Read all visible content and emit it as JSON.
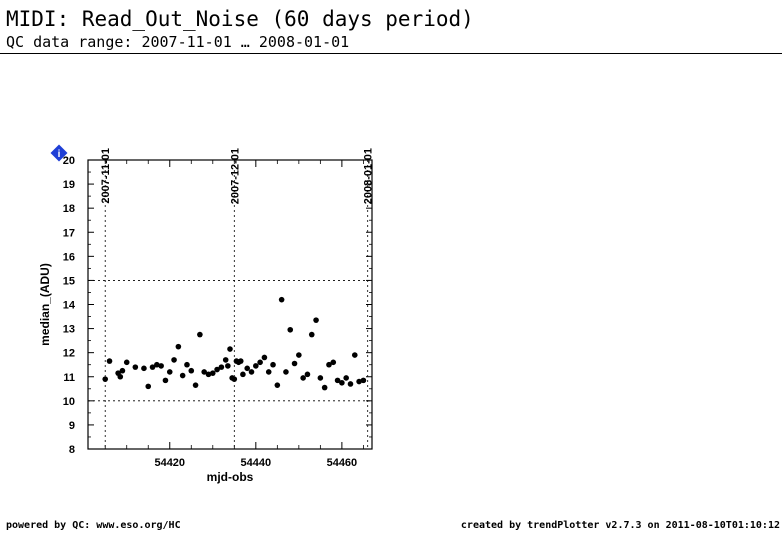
{
  "header": {
    "title": "MIDI: Read_Out_Noise (60 days period)",
    "subtitle": "QC data range: 2007-11-01 … 2008-01-01"
  },
  "footer": {
    "left": "powered by QC: www.eso.org/HC",
    "right": "created by trendPlotter v2.7.3 on 2011-08-10T01:10:12"
  },
  "marker": {
    "label": "i",
    "color": "#1f3fd6"
  },
  "chart_data": {
    "type": "scatter",
    "xlabel": "mjd-obs",
    "ylabel": "median_(ADU)",
    "xlim": [
      54401,
      54467
    ],
    "ylim": [
      8,
      20
    ],
    "xticks": [
      54420,
      54440,
      54460
    ],
    "yticks": [
      8,
      9,
      10,
      11,
      12,
      13,
      14,
      15,
      16,
      17,
      18,
      19,
      20
    ],
    "date_markers": [
      {
        "mjd": 54405,
        "label": "2007-11-01"
      },
      {
        "mjd": 54435,
        "label": "2007-12-01"
      },
      {
        "mjd": 54466,
        "label": "2008-01-01"
      }
    ],
    "reference_lines": [
      10,
      15
    ],
    "x": [
      54405,
      54406,
      54408,
      54408.5,
      54409,
      54410,
      54412,
      54414,
      54415,
      54416,
      54417,
      54418,
      54419,
      54420,
      54421,
      54422,
      54423,
      54424,
      54425,
      54426,
      54427,
      54428,
      54429,
      54430,
      54431,
      54432,
      54433,
      54433.5,
      54434,
      54434.5,
      54435,
      54435.5,
      54436,
      54436.5,
      54437,
      54438,
      54439,
      54440,
      54441,
      54442,
      54443,
      54444,
      54445,
      54446,
      54447,
      54448,
      54449,
      54450,
      54451,
      54452,
      54453,
      54454,
      54455,
      54456,
      54457,
      54458,
      54459,
      54460,
      54461,
      54462,
      54463,
      54464,
      54465
    ],
    "y": [
      10.9,
      11.65,
      11.15,
      11.0,
      11.25,
      11.6,
      11.4,
      11.35,
      10.6,
      11.4,
      11.5,
      11.45,
      10.85,
      11.2,
      11.7,
      12.25,
      11.05,
      11.5,
      11.25,
      10.65,
      12.75,
      11.2,
      11.1,
      11.15,
      11.3,
      11.4,
      11.7,
      11.45,
      12.15,
      10.95,
      10.9,
      11.65,
      11.6,
      11.65,
      11.1,
      11.35,
      11.2,
      11.45,
      11.6,
      11.8,
      11.2,
      11.5,
      10.65,
      14.2,
      11.2,
      12.95,
      11.55,
      11.9,
      10.95,
      11.1,
      12.75,
      13.35,
      10.95,
      10.55,
      11.5,
      11.6,
      10.85,
      10.75,
      10.95,
      10.7,
      11.9,
      10.8,
      10.85
    ]
  }
}
